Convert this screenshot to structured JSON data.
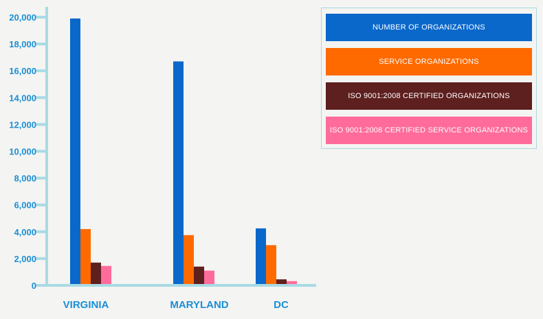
{
  "chart_data": {
    "type": "bar",
    "categories": [
      "VIRGINIA",
      "MARYLAND",
      "DC"
    ],
    "series": [
      {
        "name": "NUMBER OF ORGANIZATIONS",
        "color": "#0a68cb",
        "values": [
          19900,
          16700,
          4250
        ]
      },
      {
        "name": "SERVICE ORGANIZATIONS",
        "color": "#ff6a00",
        "values": [
          4200,
          3750,
          3000
        ]
      },
      {
        "name": "ISO 9001:2008 CERTIFIED ORGANIZATIONS",
        "color": "#5e1f1f",
        "values": [
          1700,
          1400,
          450
        ]
      },
      {
        "name": "ISO 9001:2008 CERTIFIED SERVICE ORGANIZATIONS",
        "color": "#ff6b9b",
        "values": [
          1450,
          1100,
          320
        ]
      }
    ],
    "yticks": [
      "0",
      "2,000",
      "4,000",
      "6,000",
      "8,000",
      "10,000",
      "12,000",
      "14,000",
      "16,000",
      "18,000",
      "20,000"
    ],
    "ylim": [
      0,
      20000
    ],
    "axis_color": "#a8dbe4",
    "label_color": "#1a8fd6",
    "legend_position": "top-right"
  }
}
